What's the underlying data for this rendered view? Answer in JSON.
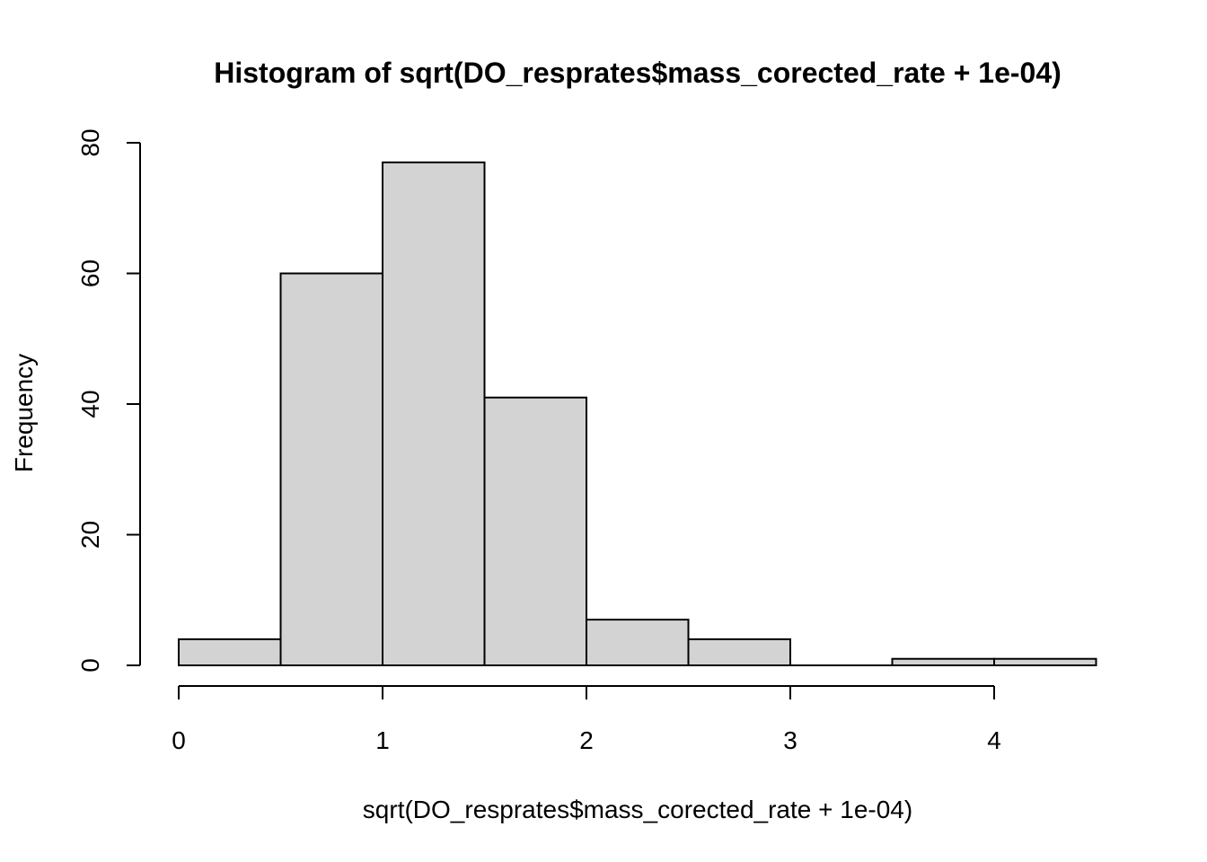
{
  "chart_data": {
    "type": "bar",
    "title": "Histogram of sqrt(DO_resprates$mass_corected_rate + 1e-04)",
    "xlabel": "sqrt(DO_resprates$mass_corected_rate + 1e-04)",
    "ylabel": "Frequency",
    "bins": [
      {
        "from": 0.0,
        "to": 0.5,
        "count": 4
      },
      {
        "from": 0.5,
        "to": 1.0,
        "count": 60
      },
      {
        "from": 1.0,
        "to": 1.5,
        "count": 77
      },
      {
        "from": 1.5,
        "to": 2.0,
        "count": 41
      },
      {
        "from": 2.0,
        "to": 2.5,
        "count": 7
      },
      {
        "from": 2.5,
        "to": 3.0,
        "count": 4
      },
      {
        "from": 3.0,
        "to": 3.5,
        "count": 0
      },
      {
        "from": 3.5,
        "to": 4.0,
        "count": 1
      },
      {
        "from": 4.0,
        "to": 4.5,
        "count": 1
      }
    ],
    "x_ticks": [
      0,
      1,
      2,
      3,
      4
    ],
    "y_ticks": [
      0,
      20,
      40,
      60,
      80
    ],
    "xlim": [
      0,
      4.5
    ],
    "ylim": [
      0,
      80
    ],
    "grid": false,
    "bar_color": "#d3d3d3",
    "border_color": "#000000"
  }
}
